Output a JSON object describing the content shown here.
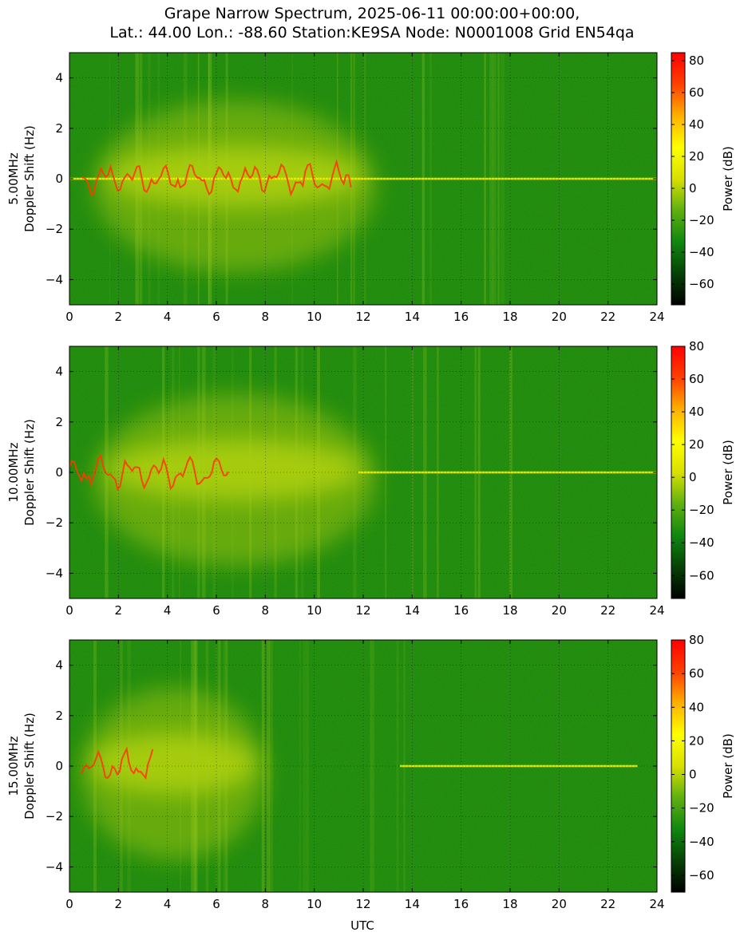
{
  "figure": {
    "title_line1": "Grape Narrow Spectrum, 2025-06-11 00:00:00+00:00,",
    "title_line2": "Lat.: 44.00 Lon.: -88.60 Station:KE9SA Node: N0001008 Grid EN54qa",
    "xlabel": "UTC"
  },
  "colors": {
    "colormap": [
      "#000000",
      "#064206",
      "#108810",
      "#5fb010",
      "#d8e000",
      "#ffff00",
      "#ffb000",
      "#ff4000",
      "#ff0000"
    ],
    "grid": "#000000"
  },
  "chart_data": [
    {
      "type": "heatmap",
      "panel": "5.00MHz",
      "ylabel_line1": "5.00MHz",
      "ylabel_line2": "Doppler Shift (Hz)",
      "colorbar_label": "Power (dB)",
      "xlim": [
        0,
        24
      ],
      "ylim": [
        -5,
        5
      ],
      "xticks": [
        "0",
        "2",
        "4",
        "6",
        "8",
        "10",
        "12",
        "14",
        "16",
        "18",
        "20",
        "22",
        "24"
      ],
      "yticks": [
        "−4",
        "−2",
        "0",
        "2",
        "4"
      ],
      "clim": [
        -73,
        85
      ],
      "cbar_ticks": [
        "−60",
        "−40",
        "−20",
        "0",
        "20",
        "40",
        "60",
        "80"
      ],
      "grid": true,
      "carrier_trace": {
        "start_utc": 0,
        "end_utc": 24,
        "doppler": 0
      },
      "enhanced_band_utc": [
        1,
        12.5
      ],
      "red_trace_utc": [
        0.5,
        11.5
      ]
    },
    {
      "type": "heatmap",
      "panel": "10.00MHz",
      "ylabel_line1": "10.00MHz",
      "ylabel_line2": "Doppler Shift (Hz)",
      "colorbar_label": "Power (dB)",
      "xlim": [
        0,
        24
      ],
      "ylim": [
        -5,
        5
      ],
      "xticks": [
        "0",
        "2",
        "4",
        "6",
        "8",
        "10",
        "12",
        "14",
        "16",
        "18",
        "20",
        "22",
        "24"
      ],
      "yticks": [
        "−4",
        "−2",
        "0",
        "2",
        "4"
      ],
      "clim": [
        -74,
        80
      ],
      "cbar_ticks": [
        "−60",
        "−40",
        "−20",
        "0",
        "20",
        "40",
        "60",
        "80"
      ],
      "grid": true,
      "carrier_trace": {
        "start_utc": 11.8,
        "end_utc": 24,
        "doppler": 0
      },
      "enhanced_band_utc": [
        1,
        12.5
      ],
      "red_trace_utc": [
        0,
        6.5
      ]
    },
    {
      "type": "heatmap",
      "panel": "15.00MHz",
      "ylabel_line1": "15.00MHz",
      "ylabel_line2": "Doppler Shift (Hz)",
      "colorbar_label": "Power (dB)",
      "xlim": [
        0,
        24
      ],
      "ylim": [
        -5,
        5
      ],
      "xticks": [
        "0",
        "2",
        "4",
        "6",
        "8",
        "10",
        "12",
        "14",
        "16",
        "18",
        "20",
        "22",
        "24"
      ],
      "yticks": [
        "−4",
        "−2",
        "0",
        "2",
        "4"
      ],
      "clim": [
        -70,
        80
      ],
      "cbar_ticks": [
        "−60",
        "−40",
        "−20",
        "0",
        "20",
        "40",
        "60",
        "80"
      ],
      "grid": true,
      "carrier_trace": {
        "start_utc": 13.5,
        "end_utc": 23.2,
        "doppler": 0
      },
      "enhanced_band_utc": [
        0.5,
        8
      ],
      "red_trace_utc": [
        0.5,
        3.4
      ]
    }
  ]
}
